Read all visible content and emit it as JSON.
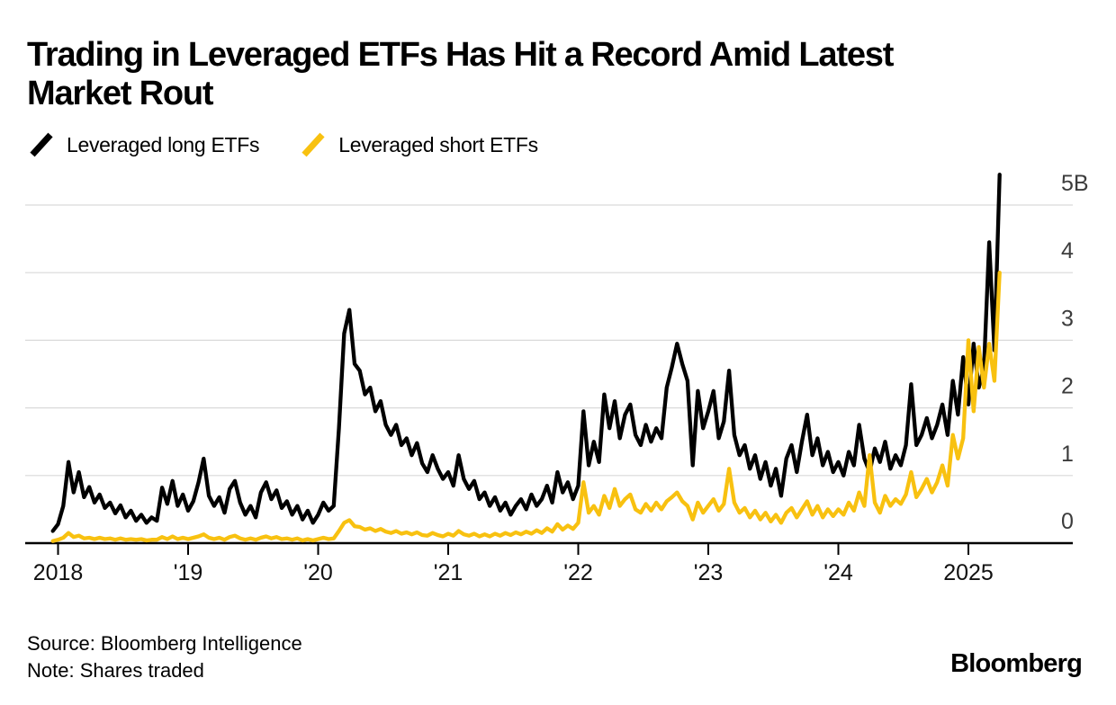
{
  "header": {
    "title_lines": [
      "Trading in Leveraged ETFs Has Hit a Record Amid Latest",
      "Market Rout"
    ]
  },
  "legend": {
    "items": [
      {
        "label": "Leveraged long ETFs",
        "color": "#000000",
        "icon": "slash-icon"
      },
      {
        "label": "Leveraged short ETFs",
        "color": "#f8c110",
        "icon": "slash-icon"
      }
    ]
  },
  "chart_data": {
    "type": "line",
    "title": "Trading in Leveraged ETFs Has Hit a Record Amid Latest Market Rout",
    "xlabel": "",
    "ylabel": "",
    "unit": "billions of shares",
    "grid": "horizontal",
    "legend_position": "top",
    "x_start": 2017.96,
    "x_step": 0.04,
    "xlim": [
      2017.9,
      2025.8
    ],
    "ylim": [
      0,
      5.5
    ],
    "x_ticks": [
      {
        "value": 2018,
        "label": "2018"
      },
      {
        "value": 2019,
        "label": "'19"
      },
      {
        "value": 2020,
        "label": "'20"
      },
      {
        "value": 2021,
        "label": "'21"
      },
      {
        "value": 2022,
        "label": "'22"
      },
      {
        "value": 2023,
        "label": "'23"
      },
      {
        "value": 2024,
        "label": "'24"
      },
      {
        "value": 2025,
        "label": "2025"
      }
    ],
    "y_ticks": [
      {
        "value": 0,
        "label": "0"
      },
      {
        "value": 1,
        "label": "1"
      },
      {
        "value": 2,
        "label": "2"
      },
      {
        "value": 3,
        "label": "3"
      },
      {
        "value": 4,
        "label": "4"
      },
      {
        "value": 5,
        "label": "5B"
      }
    ],
    "series": [
      {
        "name": "Leveraged long ETFs",
        "color": "#000000",
        "values": [
          0.18,
          0.28,
          0.55,
          1.2,
          0.75,
          1.05,
          0.68,
          0.83,
          0.6,
          0.72,
          0.52,
          0.6,
          0.44,
          0.56,
          0.38,
          0.48,
          0.33,
          0.42,
          0.3,
          0.38,
          0.33,
          0.82,
          0.58,
          0.92,
          0.55,
          0.72,
          0.48,
          0.62,
          0.9,
          1.25,
          0.7,
          0.55,
          0.68,
          0.45,
          0.8,
          0.92,
          0.6,
          0.42,
          0.55,
          0.38,
          0.75,
          0.9,
          0.65,
          0.78,
          0.52,
          0.62,
          0.42,
          0.55,
          0.35,
          0.48,
          0.3,
          0.42,
          0.6,
          0.48,
          0.55,
          1.7,
          3.1,
          3.45,
          2.65,
          2.55,
          2.2,
          2.3,
          1.95,
          2.1,
          1.75,
          1.6,
          1.75,
          1.45,
          1.55,
          1.3,
          1.48,
          1.18,
          1.05,
          1.3,
          1.1,
          0.95,
          1.05,
          0.85,
          1.3,
          0.95,
          0.8,
          0.92,
          0.65,
          0.75,
          0.55,
          0.68,
          0.48,
          0.6,
          0.42,
          0.55,
          0.65,
          0.5,
          0.72,
          0.55,
          0.65,
          0.85,
          0.6,
          1.05,
          0.75,
          0.9,
          0.65,
          0.85,
          1.95,
          1.15,
          1.5,
          1.2,
          2.2,
          1.7,
          2.1,
          1.55,
          1.9,
          2.05,
          1.6,
          1.45,
          1.75,
          1.5,
          1.7,
          1.55,
          2.3,
          2.6,
          2.95,
          2.65,
          2.4,
          1.15,
          2.25,
          1.7,
          1.95,
          2.25,
          1.55,
          1.8,
          2.55,
          1.6,
          1.3,
          1.45,
          1.1,
          1.3,
          0.95,
          1.2,
          0.85,
          1.1,
          0.7,
          1.25,
          1.45,
          1.05,
          1.5,
          1.9,
          1.3,
          1.55,
          1.15,
          1.35,
          1.05,
          1.2,
          1.0,
          1.35,
          1.15,
          1.75,
          1.25,
          1.05,
          1.4,
          1.2,
          1.5,
          1.1,
          1.3,
          1.15,
          1.45,
          2.35,
          1.45,
          1.6,
          1.85,
          1.55,
          1.75,
          2.05,
          1.6,
          2.4,
          1.9,
          2.75,
          2.05,
          2.95,
          2.3,
          2.6,
          4.45,
          2.85,
          5.45
        ]
      },
      {
        "name": "Leveraged short ETFs",
        "color": "#f8c110",
        "values": [
          0.03,
          0.05,
          0.08,
          0.15,
          0.09,
          0.11,
          0.07,
          0.08,
          0.06,
          0.08,
          0.06,
          0.07,
          0.05,
          0.07,
          0.05,
          0.06,
          0.05,
          0.06,
          0.04,
          0.05,
          0.05,
          0.09,
          0.06,
          0.1,
          0.06,
          0.08,
          0.06,
          0.08,
          0.1,
          0.13,
          0.08,
          0.06,
          0.08,
          0.05,
          0.09,
          0.11,
          0.07,
          0.05,
          0.07,
          0.05,
          0.08,
          0.1,
          0.07,
          0.09,
          0.06,
          0.07,
          0.05,
          0.07,
          0.04,
          0.06,
          0.04,
          0.06,
          0.08,
          0.06,
          0.07,
          0.18,
          0.3,
          0.34,
          0.25,
          0.24,
          0.2,
          0.22,
          0.18,
          0.21,
          0.17,
          0.15,
          0.18,
          0.14,
          0.16,
          0.13,
          0.16,
          0.12,
          0.11,
          0.15,
          0.12,
          0.1,
          0.14,
          0.11,
          0.18,
          0.13,
          0.11,
          0.14,
          0.1,
          0.13,
          0.1,
          0.14,
          0.11,
          0.15,
          0.12,
          0.16,
          0.13,
          0.17,
          0.14,
          0.19,
          0.15,
          0.22,
          0.17,
          0.28,
          0.2,
          0.26,
          0.21,
          0.3,
          0.9,
          0.45,
          0.55,
          0.42,
          0.7,
          0.52,
          0.8,
          0.55,
          0.65,
          0.72,
          0.5,
          0.45,
          0.58,
          0.48,
          0.6,
          0.5,
          0.62,
          0.68,
          0.75,
          0.62,
          0.55,
          0.35,
          0.6,
          0.45,
          0.55,
          0.65,
          0.48,
          0.58,
          1.1,
          0.6,
          0.45,
          0.52,
          0.38,
          0.48,
          0.35,
          0.45,
          0.32,
          0.42,
          0.3,
          0.45,
          0.52,
          0.38,
          0.5,
          0.62,
          0.42,
          0.55,
          0.38,
          0.5,
          0.4,
          0.5,
          0.42,
          0.6,
          0.48,
          0.75,
          0.55,
          1.3,
          0.6,
          0.45,
          0.7,
          0.55,
          0.65,
          0.58,
          0.72,
          1.05,
          0.68,
          0.8,
          0.95,
          0.75,
          0.9,
          1.15,
          0.85,
          1.6,
          1.25,
          1.55,
          3.0,
          1.95,
          2.9,
          2.3,
          2.95,
          2.4,
          4.0
        ]
      }
    ]
  },
  "footer": {
    "source": "Source: Bloomberg Intelligence",
    "note": "Note: Shares traded",
    "brand": "Bloomberg"
  }
}
